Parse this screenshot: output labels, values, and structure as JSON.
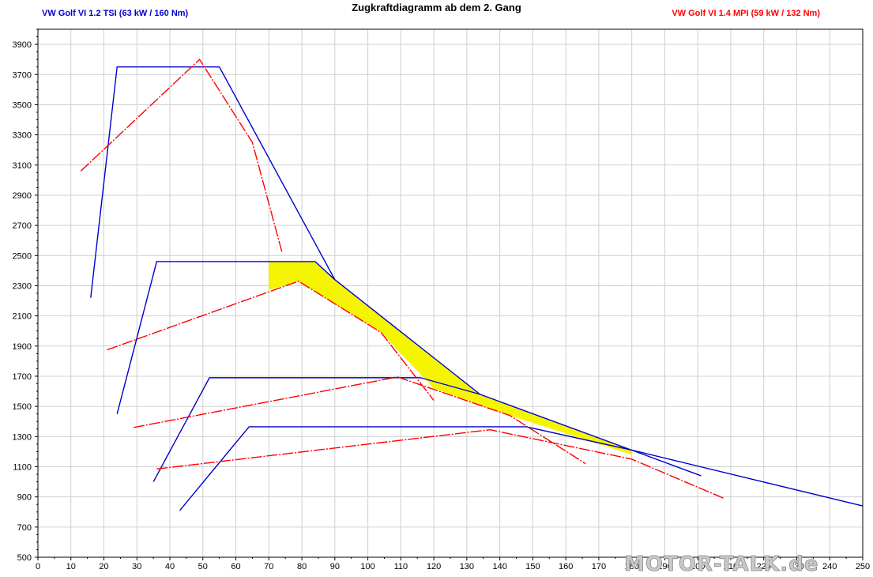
{
  "title": "Zugkraftdiagramm ab dem 2. Gang",
  "watermark": "MOTOR-TALK.de",
  "chart_data": {
    "type": "line",
    "title": "Zugkraftdiagramm ab dem 2. Gang",
    "xlabel": "",
    "ylabel": "",
    "xlim": [
      0,
      250
    ],
    "ylim": [
      500,
      4000
    ],
    "xticks": [
      0,
      10,
      20,
      30,
      40,
      50,
      60,
      70,
      80,
      90,
      100,
      110,
      120,
      130,
      140,
      150,
      160,
      170,
      180,
      190,
      200,
      210,
      220,
      230,
      240,
      250
    ],
    "yticks": [
      500,
      700,
      900,
      1100,
      1300,
      1500,
      1700,
      1900,
      2100,
      2300,
      2500,
      2700,
      2900,
      3100,
      3300,
      3500,
      3700,
      3900
    ],
    "grid": true,
    "legend": [
      {
        "label": "VW Golf VI 1.2 TSI (63 kW / 160 Nm)",
        "color": "#0000cc",
        "position": "top-left"
      },
      {
        "label": "VW Golf VI 1.4 MPI (59 kW / 132 Nm)",
        "color": "#ff0000",
        "position": "top-right"
      }
    ],
    "series": [
      {
        "name": "VW Golf VI 1.2 TSI (63 kW / 160 Nm)",
        "gear": "2",
        "color": "#0000cc",
        "x": [
          16,
          24,
          55,
          90
        ],
        "y": [
          2220,
          3750,
          3750,
          2340
        ]
      },
      {
        "name": "VW Golf VI 1.2 TSI (63 kW / 160 Nm)",
        "gear": "3",
        "color": "#0000cc",
        "x": [
          24,
          36,
          84,
          90,
          134
        ],
        "y": [
          1450,
          2460,
          2460,
          2340,
          1580
        ]
      },
      {
        "name": "VW Golf VI 1.2 TSI (63 kW / 160 Nm)",
        "gear": "4",
        "color": "#0000cc",
        "x": [
          35,
          52,
          116,
          134,
          180,
          201
        ],
        "y": [
          1000,
          1690,
          1690,
          1580,
          1210,
          1040
        ]
      },
      {
        "name": "VW Golf VI 1.2 TSI (63 kW / 160 Nm)",
        "gear": "5",
        "color": "#0000cc",
        "x": [
          43,
          64,
          148,
          180,
          250
        ],
        "y": [
          810,
          1365,
          1365,
          1210,
          840
        ]
      },
      {
        "name": "VW Golf VI 1.4 MPI (59 kW / 132 Nm)",
        "gear": "2",
        "color": "#ff0000",
        "x": [
          13,
          49,
          65,
          74
        ],
        "y": [
          3060,
          3800,
          3250,
          2520
        ]
      },
      {
        "name": "VW Golf VI 1.4 MPI (59 kW / 132 Nm)",
        "gear": "3",
        "color": "#ff0000",
        "x": [
          21,
          79,
          104,
          120
        ],
        "y": [
          1875,
          2330,
          1990,
          1540
        ]
      },
      {
        "name": "VW Golf VI 1.4 MPI (59 kW / 132 Nm)",
        "gear": "4",
        "color": "#ff0000",
        "x": [
          29,
          109,
          143,
          166
        ],
        "y": [
          1360,
          1695,
          1440,
          1120
        ]
      },
      {
        "name": "VW Golf VI 1.4 MPI (59 kW / 132 Nm)",
        "gear": "5",
        "color": "#ff0000",
        "x": [
          36,
          137,
          180,
          208
        ],
        "y": [
          1085,
          1345,
          1150,
          890
        ]
      }
    ],
    "highlight": {
      "color": "#f5f500",
      "x": [
        70,
        84,
        90,
        134,
        180,
        180,
        143,
        120,
        104,
        79,
        70
      ],
      "y": [
        2460,
        2460,
        2340,
        1580,
        1210,
        1180,
        1440,
        1620,
        1990,
        2330,
        2270
      ]
    }
  }
}
